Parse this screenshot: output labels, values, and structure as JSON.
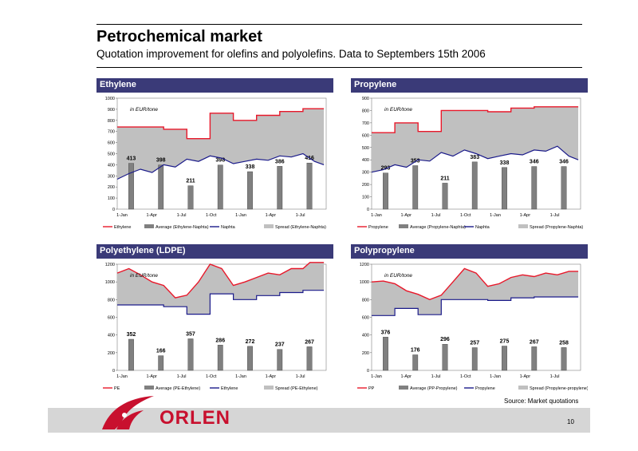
{
  "title": "Petrochemical market",
  "subtitle": "Quotation improvement for olefins and polyolefins. Data to Septembers 15th 2006",
  "source": "Source: Market quotations",
  "page_number": "10",
  "logo_text": "ORLEN",
  "colors": {
    "header": "#3a3a78",
    "spread": "#c0c0c0",
    "product_line": "#e8182a",
    "feedstock_line": "#1a1a8a",
    "bars": "#808080",
    "plot_bg": "#ffffff"
  },
  "chart_data": [
    {
      "type": "bar",
      "title": "Ethylene",
      "unit_label": "in EUR/tone",
      "x_ticks": [
        "1-Jan",
        "1-Apr",
        "1-Jul",
        "1-Oct",
        "1-Jan",
        "1-Apr",
        "1-Jul"
      ],
      "ylim": [
        0,
        1000
      ],
      "y_ticks": [
        0,
        100,
        200,
        300,
        400,
        500,
        600,
        700,
        800,
        900,
        1000
      ],
      "bar_values": [
        413,
        398,
        211,
        398,
        338,
        386,
        416
      ],
      "bar_labels": [
        "413",
        "398",
        "211",
        "398",
        "338",
        "386",
        "416"
      ],
      "product_series": [
        [
          0,
          740
        ],
        [
          2,
          740
        ],
        [
          2,
          720
        ],
        [
          3,
          720
        ],
        [
          3,
          635
        ],
        [
          4,
          635
        ],
        [
          4,
          865
        ],
        [
          5,
          865
        ],
        [
          5,
          800
        ],
        [
          6,
          800
        ],
        [
          6,
          845
        ],
        [
          7,
          845
        ],
        [
          7,
          880
        ],
        [
          8,
          880
        ],
        [
          8,
          905
        ],
        [
          8.9,
          905
        ]
      ],
      "feedstock_series": [
        [
          0,
          270
        ],
        [
          0.5,
          320
        ],
        [
          1,
          360
        ],
        [
          1.5,
          330
        ],
        [
          2,
          400
        ],
        [
          2.5,
          380
        ],
        [
          3,
          450
        ],
        [
          3.5,
          430
        ],
        [
          4,
          480
        ],
        [
          4.5,
          460
        ],
        [
          5,
          410
        ],
        [
          5.5,
          430
        ],
        [
          6,
          450
        ],
        [
          6.5,
          440
        ],
        [
          7,
          480
        ],
        [
          7.5,
          470
        ],
        [
          8,
          500
        ],
        [
          8.5,
          430
        ],
        [
          8.9,
          400
        ]
      ],
      "legend": [
        "Ethylene",
        "Average (Ethylene-Naphta)",
        "Naphta",
        "Spread (Ethylene-Naphta)"
      ]
    },
    {
      "type": "bar",
      "title": "Propylene",
      "unit_label": "in  EUR/tone",
      "x_ticks": [
        "1-Jan",
        "1-Apr",
        "1-Jul",
        "1-Oct",
        "1-Jan",
        "1-Apr",
        "1-Jul"
      ],
      "ylim": [
        0,
        900
      ],
      "y_ticks": [
        0,
        100,
        200,
        300,
        400,
        500,
        600,
        700,
        800,
        900
      ],
      "bar_values": [
        293,
        353,
        211,
        383,
        338,
        346,
        346
      ],
      "bar_labels": [
        "293",
        "353",
        "211",
        "383",
        "338",
        "346",
        "346"
      ],
      "product_series": [
        [
          0,
          620
        ],
        [
          1,
          620
        ],
        [
          1,
          700
        ],
        [
          2,
          700
        ],
        [
          2,
          630
        ],
        [
          3,
          630
        ],
        [
          3,
          800
        ],
        [
          5,
          800
        ],
        [
          5,
          790
        ],
        [
          6,
          790
        ],
        [
          6,
          820
        ],
        [
          7,
          820
        ],
        [
          7,
          830
        ],
        [
          8.9,
          830
        ]
      ],
      "feedstock_series": [
        [
          0,
          300
        ],
        [
          0.5,
          320
        ],
        [
          1,
          360
        ],
        [
          1.5,
          340
        ],
        [
          2,
          400
        ],
        [
          2.5,
          390
        ],
        [
          3,
          460
        ],
        [
          3.5,
          430
        ],
        [
          4,
          480
        ],
        [
          4.5,
          450
        ],
        [
          5,
          410
        ],
        [
          5.5,
          430
        ],
        [
          6,
          450
        ],
        [
          6.5,
          440
        ],
        [
          7,
          480
        ],
        [
          7.5,
          470
        ],
        [
          8,
          510
        ],
        [
          8.5,
          430
        ],
        [
          8.9,
          400
        ]
      ],
      "legend": [
        "Propylene",
        "Average (Propylene-Naphta)",
        "Naphta",
        "Spread (Propylene-Naphta)"
      ]
    },
    {
      "type": "bar",
      "title": "Polyethylene (LDPE)",
      "unit_label": "in EUR/tone",
      "x_ticks": [
        "1-Jan",
        "1-Apr",
        "1-Jul",
        "1-Oct",
        "1-Jan",
        "1-Apr",
        "1-Jul"
      ],
      "ylim": [
        0,
        1200
      ],
      "y_ticks": [
        0,
        200,
        400,
        600,
        800,
        1000,
        1200
      ],
      "bar_values": [
        352,
        166,
        357,
        286,
        272,
        237,
        267
      ],
      "bar_labels": [
        "352",
        "166",
        "357",
        "286",
        "272",
        "237",
        "267"
      ],
      "product_series": [
        [
          0,
          1100
        ],
        [
          0.5,
          1150
        ],
        [
          1,
          1080
        ],
        [
          1.5,
          1000
        ],
        [
          2,
          960
        ],
        [
          2.5,
          820
        ],
        [
          3,
          850
        ],
        [
          3.5,
          1000
        ],
        [
          4,
          1200
        ],
        [
          4.5,
          1150
        ],
        [
          5,
          960
        ],
        [
          5.5,
          1000
        ],
        [
          6,
          1050
        ],
        [
          6.5,
          1100
        ],
        [
          7,
          1080
        ],
        [
          7.5,
          1150
        ],
        [
          8,
          1150
        ],
        [
          8.3,
          1220
        ],
        [
          8.9,
          1220
        ]
      ],
      "feedstock_series": [
        [
          0,
          740
        ],
        [
          2,
          740
        ],
        [
          2,
          720
        ],
        [
          3,
          720
        ],
        [
          3,
          635
        ],
        [
          4,
          635
        ],
        [
          4,
          865
        ],
        [
          5,
          865
        ],
        [
          5,
          800
        ],
        [
          6,
          800
        ],
        [
          6,
          845
        ],
        [
          7,
          845
        ],
        [
          7,
          880
        ],
        [
          8,
          880
        ],
        [
          8,
          905
        ],
        [
          8.9,
          905
        ]
      ],
      "legend": [
        "PE",
        "Average (PE-Ethylene)",
        "Ethylene",
        "Spread (PE-Ethylene)"
      ]
    },
    {
      "type": "bar",
      "title": "Polypropylene",
      "unit_label": "in EUR/tone",
      "x_ticks": [
        "1-Jan",
        "1-Apr",
        "1-Jul",
        "1-Oct",
        "1-Jan",
        "1-Apr",
        "1-Jul"
      ],
      "ylim": [
        0,
        1200
      ],
      "y_ticks": [
        0,
        200,
        400,
        600,
        800,
        1000,
        1200
      ],
      "bar_values": [
        376,
        176,
        296,
        257,
        275,
        267,
        258
      ],
      "bar_labels": [
        "376",
        "176",
        "296",
        "257",
        "275",
        "267",
        "258"
      ],
      "product_series": [
        [
          0,
          1000
        ],
        [
          0.5,
          1010
        ],
        [
          1,
          980
        ],
        [
          1.5,
          900
        ],
        [
          2,
          860
        ],
        [
          2.5,
          800
        ],
        [
          3,
          850
        ],
        [
          3.5,
          1000
        ],
        [
          4,
          1150
        ],
        [
          4.5,
          1100
        ],
        [
          5,
          950
        ],
        [
          5.5,
          980
        ],
        [
          6,
          1050
        ],
        [
          6.5,
          1080
        ],
        [
          7,
          1060
        ],
        [
          7.5,
          1100
        ],
        [
          8,
          1080
        ],
        [
          8.5,
          1120
        ],
        [
          8.9,
          1120
        ]
      ],
      "feedstock_series": [
        [
          0,
          620
        ],
        [
          1,
          620
        ],
        [
          1,
          700
        ],
        [
          2,
          700
        ],
        [
          2,
          630
        ],
        [
          3,
          630
        ],
        [
          3,
          800
        ],
        [
          5,
          800
        ],
        [
          5,
          790
        ],
        [
          6,
          790
        ],
        [
          6,
          820
        ],
        [
          7,
          820
        ],
        [
          7,
          830
        ],
        [
          8.9,
          830
        ]
      ],
      "legend": [
        "PP",
        "Average (PP-Propylene)",
        "Propylene",
        "Spread (Propylene-propylene)"
      ]
    }
  ]
}
